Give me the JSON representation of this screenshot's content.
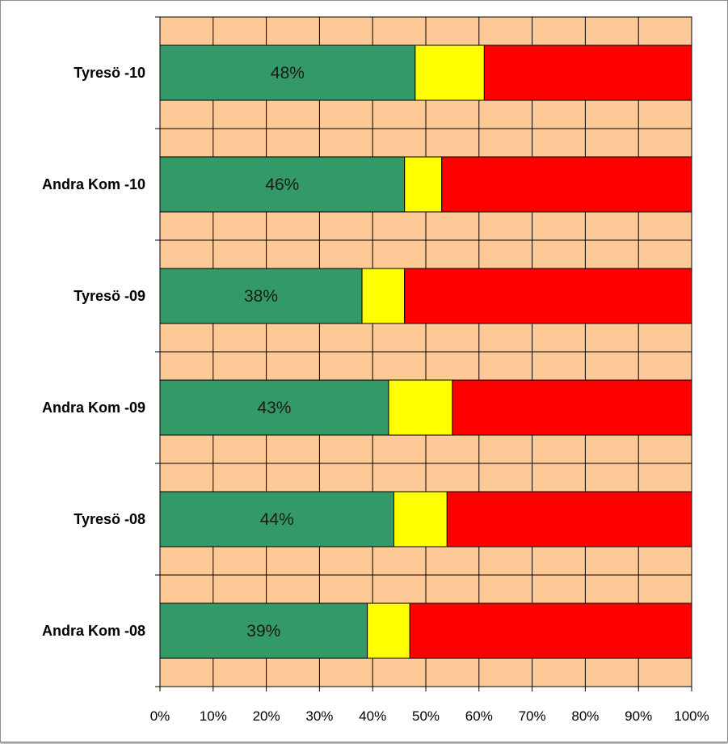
{
  "chart_data": {
    "type": "bar",
    "orientation": "horizontal",
    "stacked": true,
    "percent_stacked": true,
    "categories": [
      "Tyresö -10",
      "Andra Kom -10",
      "Tyresö -09",
      "Andra Kom -09",
      "Tyresö -08",
      "Andra Kom -08"
    ],
    "series": [
      {
        "values": [
          48,
          46,
          38,
          43,
          44,
          39
        ],
        "color": "#339966"
      },
      {
        "values": [
          13,
          7,
          8,
          12,
          10,
          8
        ],
        "color": "#ffff00"
      },
      {
        "values": [
          39,
          47,
          54,
          45,
          46,
          53
        ],
        "color": "#ff0000"
      }
    ],
    "data_labels": [
      "48%",
      "46%",
      "38%",
      "43%",
      "44%",
      "39%"
    ],
    "x_ticks": [
      "0%",
      "10%",
      "20%",
      "30%",
      "40%",
      "50%",
      "60%",
      "70%",
      "80%",
      "90%",
      "100%"
    ],
    "xlim": [
      0,
      100
    ],
    "grid": true,
    "plot_background": "#fcc997",
    "grid_color": "#000000",
    "title": "",
    "xlabel": "",
    "ylabel": "",
    "legend": "none"
  }
}
